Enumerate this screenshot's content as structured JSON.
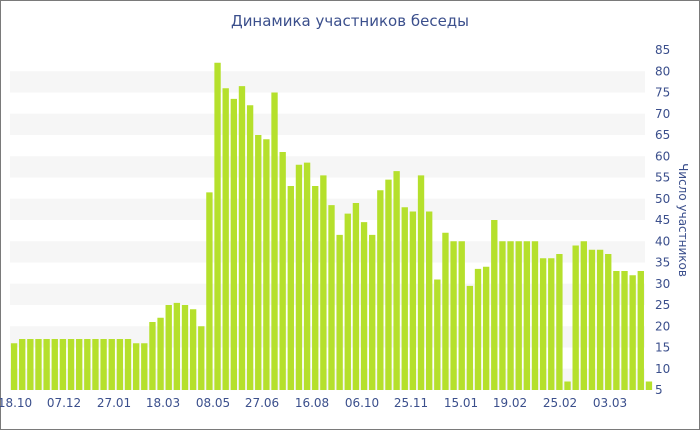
{
  "chart_data": {
    "type": "bar",
    "title": "Динамика участников беседы",
    "ylabel": "Число участников",
    "xlabel": "",
    "ylim": [
      5,
      85
    ],
    "yticks": [
      5,
      10,
      15,
      20,
      25,
      30,
      35,
      40,
      45,
      50,
      55,
      60,
      65,
      70,
      75,
      80,
      85
    ],
    "x_tick_labels": [
      "18.10",
      "07.12",
      "27.01",
      "18.03",
      "08.05",
      "27.06",
      "16.08",
      "06.10",
      "25.11",
      "15.01",
      "19.02",
      "25.02",
      "03.03"
    ],
    "grid": "alternating horizontal bands",
    "y_axis_position": "right",
    "bar_color": "#b5e02c",
    "values": [
      16,
      17,
      17,
      17,
      17,
      17,
      17,
      17,
      17,
      17,
      17,
      17,
      17,
      17,
      17,
      16,
      16,
      21,
      22,
      25,
      25.5,
      25,
      24,
      20,
      51.5,
      82,
      76,
      73.5,
      76.5,
      72,
      65,
      64,
      75,
      61,
      53,
      58,
      58.5,
      53,
      55.5,
      48.5,
      41.5,
      46.5,
      49,
      44.5,
      41.5,
      52,
      54.5,
      56.5,
      48,
      47,
      55.5,
      47,
      31,
      42,
      40,
      40,
      29.5,
      33.5,
      34,
      45,
      40,
      40,
      40,
      40,
      40,
      36,
      36,
      37,
      7,
      39,
      40,
      38,
      38,
      37,
      33,
      33,
      32,
      33,
      7
    ]
  }
}
